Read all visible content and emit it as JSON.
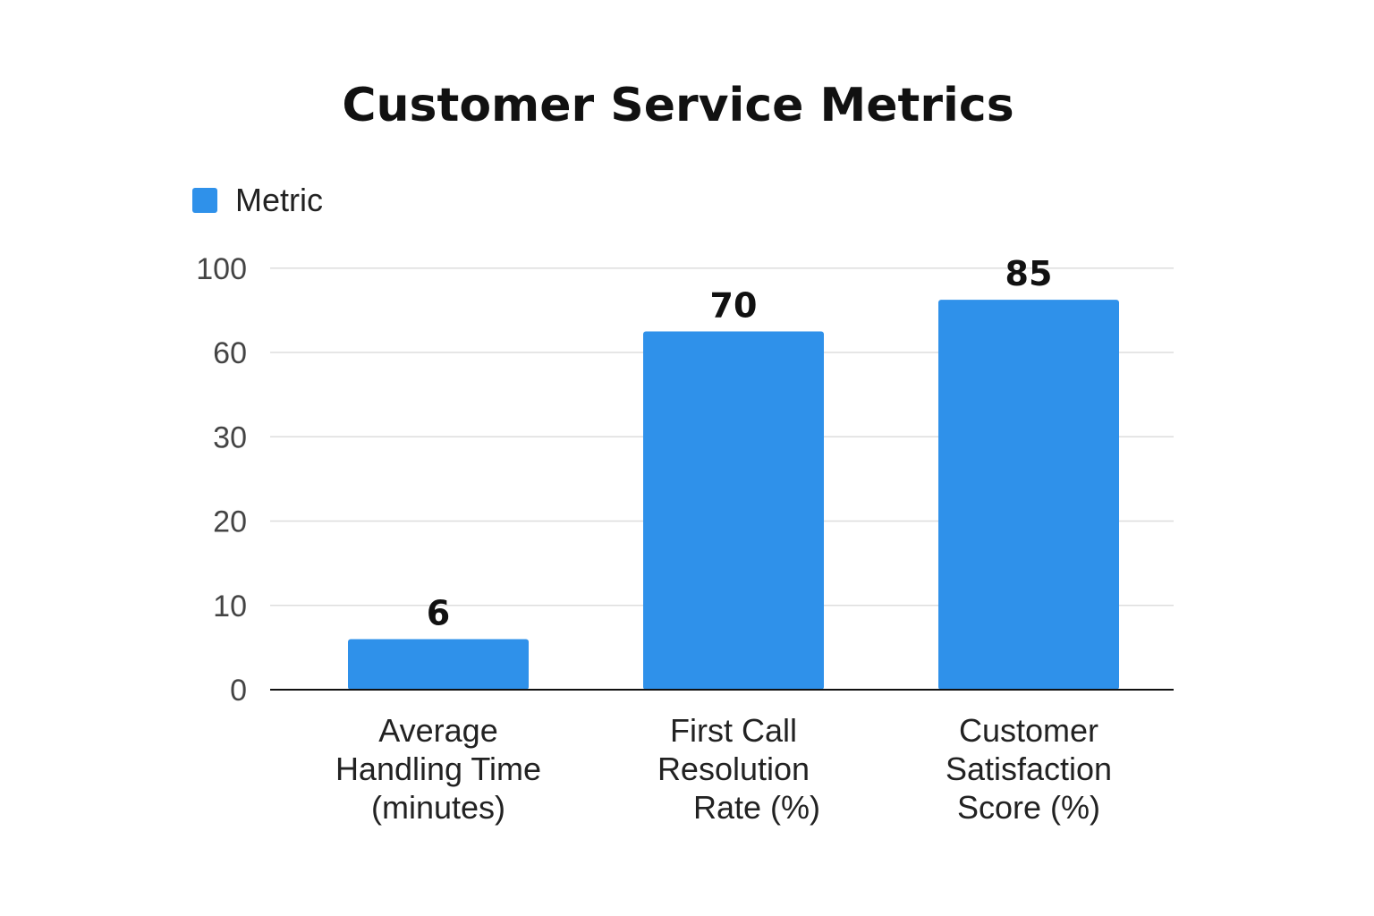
{
  "chart_data": {
    "type": "bar",
    "title": "Customer Service Metrics",
    "legend": {
      "placement": "top-left",
      "entries": [
        "Metric"
      ]
    },
    "categories": [
      [
        "Average",
        "Handling Time",
        "(minutes)"
      ],
      [
        "First Call",
        "Resolution",
        "Rate (%)"
      ],
      [
        "Customer",
        "Satisfaction",
        "Score (%)"
      ]
    ],
    "series": [
      {
        "name": "Metric",
        "values": [
          6,
          70,
          85
        ],
        "color": "#2f91ea"
      }
    ],
    "y_ticks": [
      0,
      10,
      20,
      30,
      60,
      100
    ],
    "grid": true,
    "xlabel": "",
    "ylabel": ""
  }
}
